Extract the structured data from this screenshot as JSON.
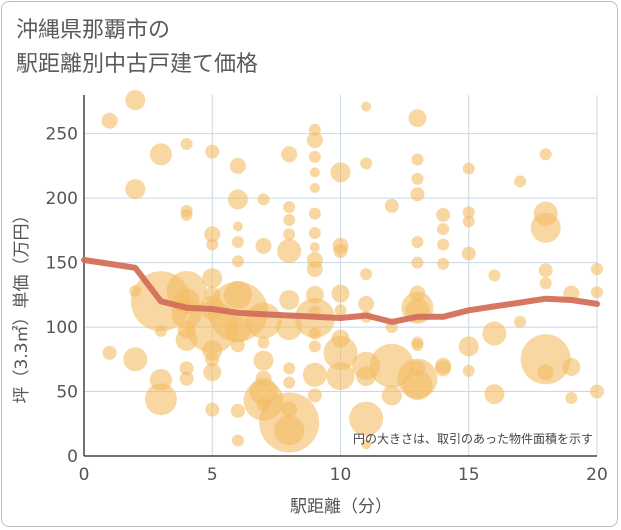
{
  "title_lines": [
    "沖縄県那覇市の",
    "駅距離別中古戸建て価格"
  ],
  "colors": {
    "bubble_fill": "#f4bc64",
    "bubble_opacity": 0.6,
    "line": "#d4705a",
    "grid": "#c8d8e4",
    "text": "#555555"
  },
  "chart_data": {
    "type": "scatter",
    "xlabel": "駅距離（分）",
    "ylabel": "坪（3.3㎡）単価（万円）",
    "xlim": [
      0,
      20
    ],
    "ylim": [
      0,
      280
    ],
    "xticks": [
      0,
      5,
      10,
      15,
      20
    ],
    "yticks": [
      0,
      50,
      100,
      150,
      200,
      250
    ],
    "note": "円の大きさは、取引のあった物件面積を示す",
    "grid": true,
    "bubbles": [
      {
        "x": 1,
        "y": 260,
        "s": 8
      },
      {
        "x": 2,
        "y": 276,
        "s": 10
      },
      {
        "x": 2,
        "y": 207,
        "s": 10
      },
      {
        "x": 3,
        "y": 234,
        "s": 11
      },
      {
        "x": 4,
        "y": 242,
        "s": 6
      },
      {
        "x": 5,
        "y": 236,
        "s": 7
      },
      {
        "x": 6,
        "y": 225,
        "s": 8
      },
      {
        "x": 6,
        "y": 199,
        "s": 10
      },
      {
        "x": 7,
        "y": 199,
        "s": 6
      },
      {
        "x": 8,
        "y": 234,
        "s": 8
      },
      {
        "x": 9,
        "y": 253,
        "s": 6
      },
      {
        "x": 9,
        "y": 245,
        "s": 8
      },
      {
        "x": 9,
        "y": 232,
        "s": 6
      },
      {
        "x": 9,
        "y": 220,
        "s": 5
      },
      {
        "x": 9,
        "y": 208,
        "s": 5
      },
      {
        "x": 10,
        "y": 220,
        "s": 10
      },
      {
        "x": 11,
        "y": 271,
        "s": 5
      },
      {
        "x": 11,
        "y": 227,
        "s": 6
      },
      {
        "x": 13,
        "y": 262,
        "s": 9
      },
      {
        "x": 13,
        "y": 230,
        "s": 6
      },
      {
        "x": 13,
        "y": 215,
        "s": 6
      },
      {
        "x": 13,
        "y": 203,
        "s": 7
      },
      {
        "x": 15,
        "y": 223,
        "s": 6
      },
      {
        "x": 17,
        "y": 213,
        "s": 6
      },
      {
        "x": 18,
        "y": 234,
        "s": 6
      },
      {
        "x": 4,
        "y": 190,
        "s": 6
      },
      {
        "x": 4,
        "y": 187,
        "s": 6
      },
      {
        "x": 5,
        "y": 172,
        "s": 8
      },
      {
        "x": 5,
        "y": 164,
        "s": 6
      },
      {
        "x": 6,
        "y": 178,
        "s": 5
      },
      {
        "x": 6,
        "y": 166,
        "s": 6
      },
      {
        "x": 6,
        "y": 151,
        "s": 6
      },
      {
        "x": 7,
        "y": 163,
        "s": 8
      },
      {
        "x": 8,
        "y": 193,
        "s": 6
      },
      {
        "x": 8,
        "y": 183,
        "s": 6
      },
      {
        "x": 8,
        "y": 172,
        "s": 6
      },
      {
        "x": 8,
        "y": 159,
        "s": 12
      },
      {
        "x": 9,
        "y": 188,
        "s": 6
      },
      {
        "x": 9,
        "y": 173,
        "s": 6
      },
      {
        "x": 9,
        "y": 162,
        "s": 5
      },
      {
        "x": 9,
        "y": 152,
        "s": 8
      },
      {
        "x": 9,
        "y": 145,
        "s": 8
      },
      {
        "x": 10,
        "y": 163,
        "s": 8
      },
      {
        "x": 10,
        "y": 159,
        "s": 7
      },
      {
        "x": 11,
        "y": 141,
        "s": 6
      },
      {
        "x": 12,
        "y": 194,
        "s": 7
      },
      {
        "x": 13,
        "y": 166,
        "s": 6
      },
      {
        "x": 13,
        "y": 150,
        "s": 6
      },
      {
        "x": 14,
        "y": 187,
        "s": 7
      },
      {
        "x": 14,
        "y": 176,
        "s": 6
      },
      {
        "x": 14,
        "y": 164,
        "s": 6
      },
      {
        "x": 14,
        "y": 149,
        "s": 6
      },
      {
        "x": 15,
        "y": 189,
        "s": 6
      },
      {
        "x": 15,
        "y": 182,
        "s": 6
      },
      {
        "x": 15,
        "y": 157,
        "s": 7
      },
      {
        "x": 16,
        "y": 140,
        "s": 6
      },
      {
        "x": 18,
        "y": 188,
        "s": 12
      },
      {
        "x": 18,
        "y": 177,
        "s": 15
      },
      {
        "x": 18,
        "y": 144,
        "s": 7
      },
      {
        "x": 18,
        "y": 134,
        "s": 6
      },
      {
        "x": 20,
        "y": 145,
        "s": 6
      },
      {
        "x": 2,
        "y": 128,
        "s": 6
      },
      {
        "x": 3,
        "y": 120,
        "s": 30
      },
      {
        "x": 4,
        "y": 128,
        "s": 20
      },
      {
        "x": 4,
        "y": 120,
        "s": 13
      },
      {
        "x": 4,
        "y": 110,
        "s": 15
      },
      {
        "x": 4,
        "y": 98,
        "s": 9
      },
      {
        "x": 4,
        "y": 90,
        "s": 11
      },
      {
        "x": 5,
        "y": 138,
        "s": 10
      },
      {
        "x": 5,
        "y": 125,
        "s": 8
      },
      {
        "x": 5,
        "y": 115,
        "s": 12
      },
      {
        "x": 5,
        "y": 100,
        "s": 26
      },
      {
        "x": 5,
        "y": 82,
        "s": 10
      },
      {
        "x": 5,
        "y": 75,
        "s": 7
      },
      {
        "x": 5,
        "y": 65,
        "s": 9
      },
      {
        "x": 6,
        "y": 125,
        "s": 14
      },
      {
        "x": 6,
        "y": 112,
        "s": 30
      },
      {
        "x": 6,
        "y": 98,
        "s": 13
      },
      {
        "x": 6,
        "y": 86,
        "s": 7
      },
      {
        "x": 7,
        "y": 105,
        "s": 18
      },
      {
        "x": 7,
        "y": 88,
        "s": 6
      },
      {
        "x": 7,
        "y": 74,
        "s": 10
      },
      {
        "x": 7,
        "y": 60,
        "s": 8
      },
      {
        "x": 7,
        "y": 50,
        "s": 14
      },
      {
        "x": 8,
        "y": 121,
        "s": 10
      },
      {
        "x": 8,
        "y": 100,
        "s": 13
      },
      {
        "x": 8,
        "y": 68,
        "s": 6
      },
      {
        "x": 8,
        "y": 57,
        "s": 6
      },
      {
        "x": 9,
        "y": 125,
        "s": 9
      },
      {
        "x": 9,
        "y": 112,
        "s": 6
      },
      {
        "x": 9,
        "y": 107,
        "s": 20
      },
      {
        "x": 9,
        "y": 95,
        "s": 6
      },
      {
        "x": 9,
        "y": 85,
        "s": 6
      },
      {
        "x": 9,
        "y": 63,
        "s": 12
      },
      {
        "x": 9,
        "y": 47,
        "s": 7
      },
      {
        "x": 10,
        "y": 126,
        "s": 9
      },
      {
        "x": 10,
        "y": 113,
        "s": 6
      },
      {
        "x": 10,
        "y": 91,
        "s": 9
      },
      {
        "x": 10,
        "y": 80,
        "s": 17
      },
      {
        "x": 10,
        "y": 62,
        "s": 14
      },
      {
        "x": 11,
        "y": 118,
        "s": 8
      },
      {
        "x": 11,
        "y": 108,
        "s": 6
      },
      {
        "x": 11,
        "y": 70,
        "s": 14
      },
      {
        "x": 11,
        "y": 62,
        "s": 10
      },
      {
        "x": 11,
        "y": 29,
        "s": 17
      },
      {
        "x": 11,
        "y": 9,
        "s": 5
      },
      {
        "x": 12,
        "y": 100,
        "s": 6
      },
      {
        "x": 12,
        "y": 70,
        "s": 22
      },
      {
        "x": 12,
        "y": 47,
        "s": 10
      },
      {
        "x": 13,
        "y": 126,
        "s": 8
      },
      {
        "x": 13,
        "y": 115,
        "s": 16
      },
      {
        "x": 13,
        "y": 113,
        "s": 12
      },
      {
        "x": 13,
        "y": 88,
        "s": 6
      },
      {
        "x": 13,
        "y": 86,
        "s": 6
      },
      {
        "x": 13,
        "y": 68,
        "s": 8
      },
      {
        "x": 13,
        "y": 60,
        "s": 20
      },
      {
        "x": 13,
        "y": 55,
        "s": 15
      },
      {
        "x": 14,
        "y": 70,
        "s": 8
      },
      {
        "x": 14,
        "y": 68,
        "s": 8
      },
      {
        "x": 15,
        "y": 85,
        "s": 10
      },
      {
        "x": 15,
        "y": 66,
        "s": 6
      },
      {
        "x": 16,
        "y": 95,
        "s": 12
      },
      {
        "x": 16,
        "y": 48,
        "s": 10
      },
      {
        "x": 17,
        "y": 104,
        "s": 6
      },
      {
        "x": 18,
        "y": 75,
        "s": 25
      },
      {
        "x": 18,
        "y": 65,
        "s": 8
      },
      {
        "x": 19,
        "y": 126,
        "s": 8
      },
      {
        "x": 19,
        "y": 69,
        "s": 9
      },
      {
        "x": 19,
        "y": 45,
        "s": 6
      },
      {
        "x": 20,
        "y": 127,
        "s": 6
      },
      {
        "x": 20,
        "y": 50,
        "s": 7
      },
      {
        "x": 1,
        "y": 80,
        "s": 7
      },
      {
        "x": 2,
        "y": 75,
        "s": 12
      },
      {
        "x": 3,
        "y": 97,
        "s": 6
      },
      {
        "x": 3,
        "y": 59,
        "s": 11
      },
      {
        "x": 3,
        "y": 44,
        "s": 16
      },
      {
        "x": 4,
        "y": 68,
        "s": 7
      },
      {
        "x": 4,
        "y": 60,
        "s": 7
      },
      {
        "x": 5,
        "y": 36,
        "s": 7
      },
      {
        "x": 6,
        "y": 35,
        "s": 7
      },
      {
        "x": 6,
        "y": 12,
        "s": 6
      },
      {
        "x": 7,
        "y": 43,
        "s": 20
      },
      {
        "x": 7,
        "y": 40,
        "s": 7
      },
      {
        "x": 8,
        "y": 26,
        "s": 30
      },
      {
        "x": 8,
        "y": 36,
        "s": 8
      },
      {
        "x": 8,
        "y": 20,
        "s": 15
      }
    ],
    "trend_line": {
      "x": [
        0,
        1,
        2,
        3,
        4,
        5,
        6,
        7,
        8,
        9,
        10,
        11,
        12,
        13,
        14,
        15,
        16,
        17,
        18,
        19,
        20
      ],
      "y": [
        152,
        149,
        146,
        120,
        115,
        114,
        111,
        110,
        109,
        108,
        107,
        109,
        104,
        108,
        108,
        113,
        116,
        119,
        122,
        121,
        118
      ]
    }
  }
}
